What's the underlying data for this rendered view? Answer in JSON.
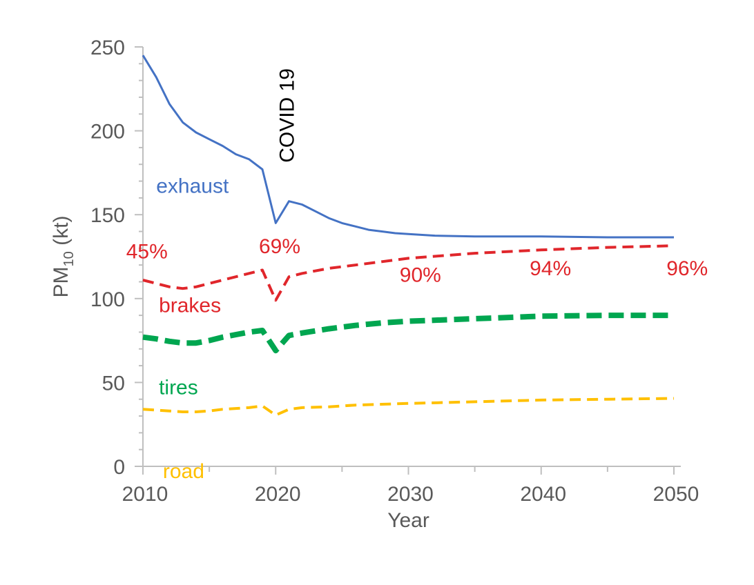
{
  "chart_data": {
    "type": "line",
    "xlabel": "Year",
    "ylabel": {
      "base": "PM",
      "sub": "10",
      "unit": " (kt)"
    },
    "xlim": [
      2010,
      2050
    ],
    "ylim": [
      0,
      250
    ],
    "x_ticks": [
      2010,
      2020,
      2030,
      2040,
      2050
    ],
    "y_ticks": [
      0,
      50,
      100,
      150,
      200,
      250
    ],
    "grid": false,
    "legend": "inline",
    "annotation": {
      "text": "COVID 19",
      "x": 2020
    },
    "series": [
      {
        "name": "exhaust",
        "color": "#4472C4",
        "style": "solid",
        "x": [
          2010,
          2011,
          2012,
          2013,
          2014,
          2015,
          2016,
          2017,
          2018,
          2019,
          2020,
          2021,
          2022,
          2023,
          2024,
          2025,
          2026,
          2027,
          2028,
          2029,
          2030,
          2032,
          2035,
          2040,
          2045,
          2050
        ],
        "y": [
          245,
          232,
          216,
          205,
          199,
          195,
          191,
          186,
          183,
          177,
          145,
          158,
          156,
          152,
          148,
          145,
          143,
          141,
          140,
          139,
          138.5,
          137.5,
          137,
          137,
          136.5,
          136.5
        ]
      },
      {
        "name": "brakes",
        "color": "#E0262B",
        "style": "dashed",
        "x": [
          2010,
          2011,
          2012,
          2013,
          2014,
          2015,
          2016,
          2017,
          2018,
          2019,
          2020,
          2021,
          2022,
          2024,
          2026,
          2028,
          2030,
          2035,
          2040,
          2045,
          2050
        ],
        "y": [
          111,
          109,
          107,
          106,
          107,
          109,
          111,
          113,
          115,
          117,
          99,
          113,
          115,
          118,
          120,
          122,
          124,
          127,
          129,
          130.5,
          131.5
        ]
      },
      {
        "name": "tires",
        "color": "#00A650",
        "style": "dashed-bold",
        "x": [
          2010,
          2011,
          2012,
          2013,
          2014,
          2015,
          2016,
          2017,
          2018,
          2019,
          2020,
          2021,
          2022,
          2024,
          2026,
          2028,
          2030,
          2035,
          2040,
          2045,
          2050
        ],
        "y": [
          77,
          76,
          74.5,
          73.5,
          73.5,
          75,
          77,
          78.5,
          80,
          81,
          69,
          78,
          79.5,
          82,
          84,
          85.5,
          86.5,
          88,
          89.5,
          90,
          90
        ]
      },
      {
        "name": "road",
        "color": "#FFC000",
        "style": "dashed",
        "x": [
          2010,
          2011,
          2012,
          2013,
          2014,
          2015,
          2016,
          2017,
          2018,
          2019,
          2020,
          2021,
          2022,
          2024,
          2026,
          2028,
          2030,
          2035,
          2040,
          2045,
          2050
        ],
        "y": [
          34,
          33.5,
          33,
          32.5,
          32.5,
          33,
          34,
          34.5,
          35,
          36,
          30.5,
          34,
          35,
          35.5,
          36.5,
          37,
          37.5,
          38.5,
          39.5,
          40,
          40.5
        ]
      }
    ],
    "percent_labels": [
      "45%",
      "69%",
      "90%",
      "94%",
      "96%"
    ],
    "percent_label_color": "#E0262B"
  }
}
